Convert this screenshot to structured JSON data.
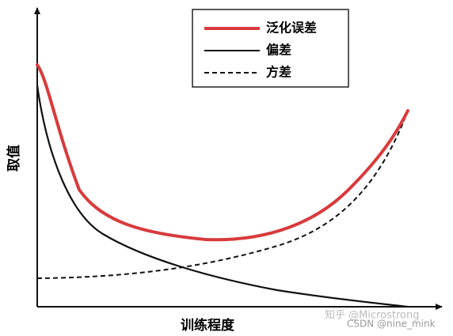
{
  "axes": {
    "x_label": "训练程度",
    "y_label": "取值"
  },
  "legend": [
    {
      "label": "泛化误差",
      "color": "#d93a3c",
      "dash": "none"
    },
    {
      "label": "偏差",
      "color": "#111111",
      "dash": "none"
    },
    {
      "label": "方差",
      "color": "#111111",
      "dash": "6 4"
    }
  ],
  "watermarks": [
    "知乎 @Microstrong",
    "CSDN @nine_mink"
  ]
}
